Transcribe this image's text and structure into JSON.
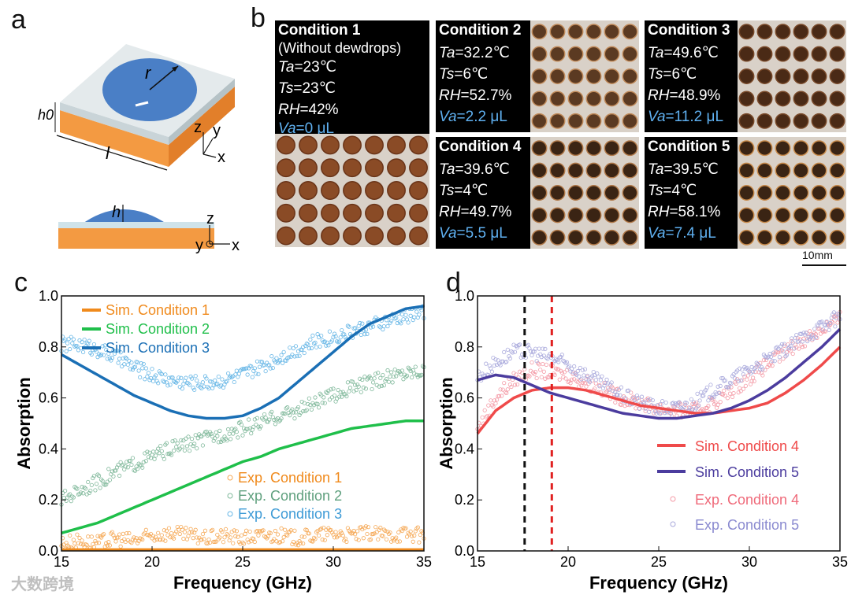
{
  "panel_labels": [
    "a",
    "b",
    "c",
    "d"
  ],
  "panel_a": {
    "r": "r",
    "h0": "h0",
    "l": "l",
    "h": "h",
    "ax1": [
      "z",
      "y",
      "x"
    ],
    "ax2": [
      "z",
      "y",
      "x"
    ]
  },
  "panel_b": {
    "conditions": [
      {
        "title": "Condition 1",
        "subtitle": "(Without dewdrops)",
        "ta": "=23℃",
        "ts": "=23℃",
        "rh": "=42%",
        "va": "=0 μL"
      },
      {
        "title": "Condition 2",
        "ta": "=32.2℃",
        "ts": "=6℃",
        "rh": "=52.7%",
        "va": "=2.2 μL"
      },
      {
        "title": "Condition 3",
        "ta": "=49.6℃",
        "ts": "=6℃",
        "rh": "=48.9%",
        "va": "=11.2 μL"
      },
      {
        "title": "Condition 4",
        "ta": "=39.6℃",
        "ts": "=4℃",
        "rh": "=49.7%",
        "va": "=5.5 μL"
      },
      {
        "title": "Condition 5",
        "ta": "=39.5℃",
        "ts": "=4℃",
        "rh": "=58.1%",
        "va": "=7.4 μL"
      }
    ],
    "var_labels": {
      "ta": "Ta",
      "ts": "Ts",
      "rh": "RH",
      "va": "Va"
    },
    "scale_bar": "10mm"
  },
  "colors": {
    "c1": "#f08a1c",
    "c2": "#1fbf4a",
    "c3": "#1a6fb5",
    "e1": "#f5a855",
    "e2": "#7fb89a",
    "e3": "#66b6e6",
    "c4": "#ef4a4a",
    "c5": "#4b3c9e",
    "e4": "#f49aa6",
    "e5": "#a9a9dc"
  },
  "chart_data": [
    {
      "type": "line",
      "panel": "c",
      "xlabel": "Frequency (GHz)",
      "ylabel": "Absorption",
      "xlim": [
        15,
        35
      ],
      "ylim": [
        0,
        1
      ],
      "xticks": [
        15,
        20,
        25,
        30,
        35
      ],
      "yticks": [
        0.0,
        0.2,
        0.4,
        0.6,
        0.8,
        1.0
      ],
      "legend_top": [
        "Sim. Condition  1",
        "Sim. Condition 2",
        "Sim. Condition 3"
      ],
      "legend_bottom": [
        "Exp. Condition  1",
        "Exp. Condition 2",
        "Exp. Condition 3"
      ],
      "x": [
        15,
        16,
        17,
        18,
        19,
        20,
        21,
        22,
        23,
        24,
        25,
        26,
        27,
        28,
        29,
        30,
        31,
        32,
        33,
        34,
        35
      ],
      "series": [
        {
          "name": "Sim. Condition 1",
          "values": [
            0.005,
            0.005,
            0.005,
            0.005,
            0.005,
            0.005,
            0.005,
            0.005,
            0.005,
            0.005,
            0.005,
            0.005,
            0.005,
            0.005,
            0.005,
            0.005,
            0.005,
            0.005,
            0.005,
            0.005,
            0.005
          ]
        },
        {
          "name": "Sim. Condition 2",
          "values": [
            0.07,
            0.09,
            0.11,
            0.14,
            0.17,
            0.2,
            0.23,
            0.26,
            0.29,
            0.32,
            0.35,
            0.37,
            0.4,
            0.42,
            0.44,
            0.46,
            0.48,
            0.49,
            0.5,
            0.51,
            0.51
          ]
        },
        {
          "name": "Sim. Condition 3",
          "values": [
            0.77,
            0.73,
            0.69,
            0.65,
            0.61,
            0.58,
            0.55,
            0.53,
            0.52,
            0.52,
            0.53,
            0.56,
            0.6,
            0.66,
            0.72,
            0.78,
            0.84,
            0.89,
            0.92,
            0.95,
            0.96
          ]
        },
        {
          "name": "Exp. Condition 1",
          "values": [
            0.03,
            0.04,
            0.03,
            0.05,
            0.04,
            0.06,
            0.07,
            0.06,
            0.05,
            0.06,
            0.05,
            0.06,
            0.06,
            0.05,
            0.06,
            0.07,
            0.06,
            0.07,
            0.06,
            0.07,
            0.06
          ]
        },
        {
          "name": "Exp. Condition 2",
          "values": [
            0.2,
            0.24,
            0.27,
            0.31,
            0.34,
            0.37,
            0.4,
            0.42,
            0.44,
            0.46,
            0.48,
            0.5,
            0.53,
            0.55,
            0.58,
            0.61,
            0.64,
            0.66,
            0.68,
            0.7,
            0.71
          ]
        },
        {
          "name": "Exp. Condition 3",
          "values": [
            0.81,
            0.81,
            0.79,
            0.76,
            0.72,
            0.69,
            0.67,
            0.66,
            0.66,
            0.67,
            0.69,
            0.72,
            0.76,
            0.79,
            0.82,
            0.84,
            0.86,
            0.88,
            0.9,
            0.92,
            0.94
          ]
        }
      ]
    },
    {
      "type": "line",
      "panel": "d",
      "xlabel": "Frequency (GHz)",
      "ylabel": "Absorption",
      "xlim": [
        15,
        35
      ],
      "ylim": [
        0,
        1
      ],
      "xticks": [
        15,
        20,
        25,
        30,
        35
      ],
      "yticks": [
        0.0,
        0.2,
        0.4,
        0.6,
        0.8,
        1.0
      ],
      "vlines": [
        17.6,
        19.1
      ],
      "legend": [
        "Sim. Condition 4",
        "Sim. Condition 5",
        "Exp. Condition 4",
        "Exp. Condition 5"
      ],
      "x": [
        15,
        16,
        17,
        18,
        19,
        20,
        21,
        22,
        23,
        24,
        25,
        26,
        27,
        28,
        29,
        30,
        31,
        32,
        33,
        34,
        35
      ],
      "series": [
        {
          "name": "Sim. Condition 4",
          "values": [
            0.46,
            0.55,
            0.6,
            0.63,
            0.64,
            0.64,
            0.63,
            0.61,
            0.59,
            0.57,
            0.56,
            0.55,
            0.54,
            0.54,
            0.55,
            0.56,
            0.58,
            0.62,
            0.67,
            0.73,
            0.8
          ]
        },
        {
          "name": "Sim. Condition 5",
          "values": [
            0.67,
            0.69,
            0.68,
            0.65,
            0.62,
            0.6,
            0.58,
            0.56,
            0.54,
            0.53,
            0.52,
            0.52,
            0.53,
            0.54,
            0.56,
            0.59,
            0.63,
            0.68,
            0.74,
            0.8,
            0.87
          ]
        },
        {
          "name": "Exp. Condition 4",
          "values": [
            0.48,
            0.6,
            0.67,
            0.71,
            0.7,
            0.69,
            0.66,
            0.63,
            0.6,
            0.58,
            0.56,
            0.55,
            0.55,
            0.58,
            0.63,
            0.68,
            0.73,
            0.78,
            0.83,
            0.87,
            0.91
          ]
        },
        {
          "name": "Exp. Condition 5",
          "values": [
            0.68,
            0.74,
            0.78,
            0.78,
            0.76,
            0.73,
            0.69,
            0.65,
            0.61,
            0.58,
            0.56,
            0.56,
            0.58,
            0.63,
            0.67,
            0.71,
            0.75,
            0.79,
            0.84,
            0.88,
            0.92
          ]
        }
      ]
    }
  ],
  "watermark": "大数跨境"
}
